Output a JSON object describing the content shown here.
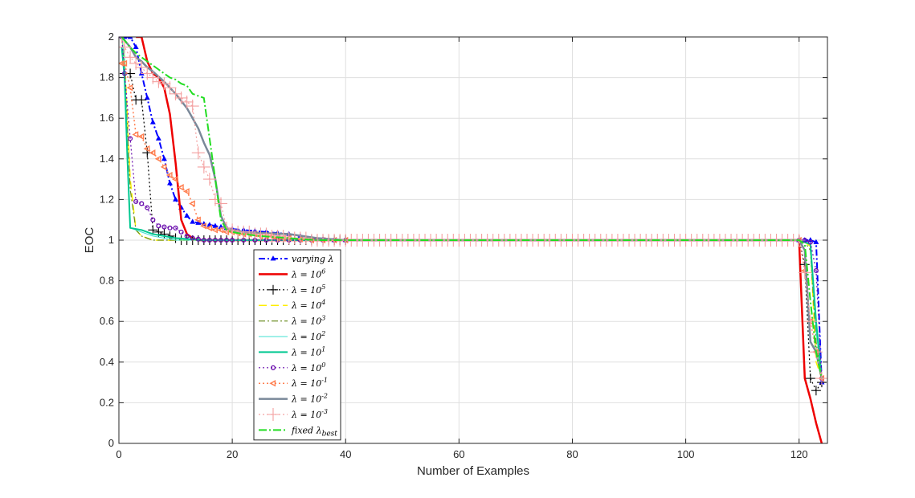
{
  "chart_data": {
    "type": "line",
    "title": "",
    "xlabel": "Number of Examples",
    "ylabel": "EOC",
    "xlim": [
      0,
      125
    ],
    "ylim": [
      0,
      2
    ],
    "xticks": [
      "0",
      "20",
      "40",
      "60",
      "80",
      "100",
      "120"
    ],
    "yticks": [
      "0",
      "0.2",
      "0.4",
      "0.6",
      "0.8",
      "1",
      "1.2",
      "1.4",
      "1.6",
      "1.8",
      "2"
    ],
    "grid": true,
    "legend_position": "inside-lower-left",
    "series": [
      {
        "name": "varying λ",
        "label_base": "varying ",
        "label_lambda": "λ",
        "label_sup": "",
        "label_sub": "",
        "color": "#0000ff",
        "dash": "8,3,2,3",
        "width": 2,
        "marker": "triangle",
        "marker_every": 1,
        "x": [
          1,
          2,
          3,
          4,
          5,
          6,
          7,
          8,
          9,
          10,
          11,
          12,
          13,
          14,
          15,
          16,
          17,
          18,
          19,
          20,
          22,
          24,
          26,
          28,
          30,
          32,
          34,
          36,
          38,
          40,
          120,
          121,
          122,
          123,
          124
        ],
        "y": [
          2.0,
          2.0,
          1.95,
          1.82,
          1.7,
          1.58,
          1.5,
          1.4,
          1.28,
          1.2,
          1.16,
          1.12,
          1.09,
          1.085,
          1.08,
          1.075,
          1.07,
          1.065,
          1.06,
          1.055,
          1.05,
          1.045,
          1.04,
          1.035,
          1.03,
          1.02,
          1.01,
          1.005,
          1.0,
          1.0,
          1.0,
          1.0,
          1.0,
          0.99,
          0.3
        ]
      },
      {
        "name": "λ = 10^6",
        "label_base": "",
        "label_lambda": "λ",
        "label_sup": "6",
        "label_sub": "",
        "color": "#ee0000",
        "dash": "",
        "width": 2.5,
        "marker": "none",
        "marker_every": 0,
        "x": [
          3,
          4,
          5,
          6,
          7,
          8,
          9,
          10,
          11,
          12,
          13,
          14,
          15,
          16,
          18,
          20,
          30,
          40,
          120,
          121,
          122,
          123,
          124
        ],
        "y": [
          2.0,
          2.0,
          1.88,
          1.82,
          1.8,
          1.75,
          1.62,
          1.38,
          1.1,
          1.03,
          1.01,
          1.0,
          1.0,
          1.0,
          1.0,
          1.0,
          1.0,
          1.0,
          1.0,
          0.32,
          0.22,
          0.1,
          0.0
        ]
      },
      {
        "name": "λ = 10^5",
        "label_base": "",
        "label_lambda": "λ",
        "label_sup": "5",
        "label_sub": "",
        "color": "#000000",
        "dash": "2,3",
        "width": 1.2,
        "marker": "plus",
        "marker_every": 1,
        "x": [
          1,
          2,
          3,
          4,
          5,
          6,
          7,
          8,
          9,
          10,
          11,
          12,
          13,
          14,
          15,
          16,
          17,
          18,
          19,
          20,
          21,
          22,
          23,
          24,
          25,
          26,
          27,
          28,
          29,
          30,
          31,
          32,
          33,
          34,
          35,
          36,
          37,
          38,
          39,
          40,
          120,
          121,
          122,
          123,
          124
        ],
        "y": [
          1.82,
          1.82,
          1.69,
          1.69,
          1.43,
          1.05,
          1.04,
          1.03,
          1.02,
          1.01,
          1.0,
          1.0,
          1.0,
          1.0,
          1.0,
          1.0,
          1.0,
          1.0,
          1.0,
          1.0,
          1.0,
          1.0,
          1.0,
          1.0,
          1.0,
          1.0,
          1.0,
          1.0,
          1.0,
          1.0,
          1.0,
          1.0,
          1.0,
          1.0,
          1.0,
          1.0,
          1.0,
          1.0,
          1.0,
          1.0,
          1.0,
          0.88,
          0.32,
          0.26,
          0.3
        ]
      },
      {
        "name": "λ = 10^4",
        "label_base": "",
        "label_lambda": "λ",
        "label_sup": "4",
        "label_sub": "",
        "color": "#ffee00",
        "dash": "10,5",
        "width": 1.5,
        "marker": "none",
        "marker_every": 0,
        "x": [
          0.5,
          1,
          2,
          3,
          4,
          5,
          6,
          8,
          10,
          15,
          20,
          40,
          120,
          121,
          122,
          123,
          124
        ],
        "y": [
          2.0,
          1.9,
          1.3,
          1.05,
          1.02,
          1.01,
          1.0,
          1.0,
          1.0,
          1.0,
          1.0,
          1.0,
          1.0,
          0.99,
          0.97,
          0.4,
          0.32
        ]
      },
      {
        "name": "λ = 10^3",
        "label_base": "",
        "label_lambda": "λ",
        "label_sup": "3",
        "label_sub": "",
        "color": "#6b8e23",
        "dash": "8,3,2,3",
        "width": 1.2,
        "marker": "none",
        "marker_every": 0,
        "x": [
          0.5,
          1,
          2,
          3,
          4,
          5,
          6,
          8,
          10,
          15,
          20,
          40,
          120,
          121,
          122,
          123,
          124
        ],
        "y": [
          2.0,
          1.85,
          1.25,
          1.05,
          1.02,
          1.01,
          1.0,
          1.0,
          1.0,
          1.0,
          1.0,
          1.0,
          1.0,
          0.99,
          0.95,
          0.5,
          0.32
        ]
      },
      {
        "name": "λ = 10^2",
        "label_base": "",
        "label_lambda": "λ",
        "label_sup": "2",
        "label_sub": "",
        "color": "#40e0d0",
        "dash": "",
        "width": 1,
        "marker": "none",
        "marker_every": 0,
        "x": [
          0.5,
          1,
          1.5,
          2,
          4,
          6,
          8,
          10,
          15,
          20,
          40,
          120,
          121,
          122,
          123,
          124
        ],
        "y": [
          2.0,
          1.9,
          1.4,
          1.06,
          1.04,
          1.02,
          1.01,
          1.0,
          1.0,
          1.0,
          1.0,
          1.0,
          0.99,
          0.98,
          0.55,
          0.32
        ]
      },
      {
        "name": "λ = 10^1",
        "label_base": "",
        "label_lambda": "λ",
        "label_sup": "1",
        "label_sub": "",
        "color": "#00c890",
        "dash": "",
        "width": 2,
        "marker": "none",
        "marker_every": 0,
        "x": [
          0.5,
          1,
          1.5,
          2,
          4,
          6,
          8,
          10,
          15,
          20,
          40,
          120,
          121,
          122,
          123,
          124
        ],
        "y": [
          1.95,
          1.8,
          1.4,
          1.06,
          1.05,
          1.03,
          1.02,
          1.01,
          1.0,
          1.0,
          1.0,
          1.0,
          0.99,
          0.98,
          0.6,
          0.32
        ]
      },
      {
        "name": "λ = 10^0",
        "label_base": "",
        "label_lambda": "λ",
        "label_sup": "0",
        "label_sub": "",
        "color": "#6a0dad",
        "dash": "2,3",
        "width": 1.2,
        "marker": "circle",
        "marker_every": 1,
        "x": [
          0.5,
          1,
          2,
          3,
          4,
          5,
          6,
          7,
          8,
          9,
          10,
          11,
          12,
          13,
          14,
          15,
          16,
          17,
          18,
          19,
          20,
          22,
          24,
          26,
          28,
          30,
          32,
          34,
          36,
          38,
          40,
          120,
          121,
          122,
          123,
          124
        ],
        "y": [
          2.0,
          1.82,
          1.5,
          1.19,
          1.18,
          1.16,
          1.1,
          1.07,
          1.065,
          1.06,
          1.06,
          1.04,
          1.02,
          1.01,
          1.005,
          1.0,
          1.0,
          1.0,
          1.0,
          1.0,
          1.0,
          1.0,
          1.0,
          1.0,
          1.0,
          1.0,
          1.0,
          1.0,
          1.0,
          1.0,
          1.0,
          1.0,
          1.0,
          0.99,
          0.85,
          0.32
        ]
      },
      {
        "name": "λ = 10^-1",
        "label_base": "",
        "label_lambda": "λ",
        "label_sup": "-1",
        "label_sub": "",
        "color": "#ff7f50",
        "dash": "2,3",
        "width": 1.5,
        "marker": "triangle-left",
        "marker_every": 1,
        "x": [
          0.5,
          1,
          2,
          3,
          4,
          5,
          6,
          7,
          8,
          9,
          10,
          11,
          12,
          13,
          14,
          15,
          16,
          17,
          18,
          19,
          20,
          21,
          22,
          23,
          24,
          25,
          26,
          27,
          28,
          29,
          30,
          32,
          34,
          36,
          38,
          40,
          120,
          121,
          122,
          123,
          124
        ],
        "y": [
          1.87,
          1.87,
          1.75,
          1.52,
          1.51,
          1.45,
          1.43,
          1.4,
          1.36,
          1.32,
          1.3,
          1.26,
          1.24,
          1.18,
          1.1,
          1.07,
          1.06,
          1.05,
          1.05,
          1.04,
          1.04,
          1.035,
          1.03,
          1.03,
          1.03,
          1.02,
          1.02,
          1.02,
          1.01,
          1.01,
          1.01,
          1.005,
          1.0,
          1.0,
          1.0,
          1.0,
          1.0,
          0.85,
          0.6,
          0.45,
          0.32
        ]
      },
      {
        "name": "λ = 10^-2",
        "label_base": "",
        "label_lambda": "λ",
        "label_sup": "-2",
        "label_sub": "",
        "color": "#7a8899",
        "dash": "",
        "width": 2.5,
        "marker": "none",
        "marker_every": 0,
        "x": [
          0.5,
          2,
          3,
          4,
          5,
          6,
          8,
          10,
          12,
          14,
          15,
          16,
          17,
          18,
          19,
          20,
          22,
          25,
          30,
          35,
          40,
          120,
          121,
          122,
          123,
          124
        ],
        "y": [
          2.0,
          1.95,
          1.9,
          1.88,
          1.85,
          1.83,
          1.78,
          1.72,
          1.65,
          1.55,
          1.48,
          1.42,
          1.3,
          1.12,
          1.06,
          1.05,
          1.04,
          1.035,
          1.03,
          1.01,
          1.0,
          1.0,
          0.95,
          0.5,
          0.45,
          0.32
        ]
      },
      {
        "name": "λ = 10^-3",
        "label_base": "",
        "label_lambda": "λ",
        "label_sup": "-3",
        "label_sub": "",
        "color": "#f4a0a0",
        "dash": "2,3",
        "width": 1.2,
        "marker": "plus-large",
        "marker_every": 1,
        "x": [
          0.5,
          1,
          2,
          3,
          4,
          5,
          6,
          7,
          8,
          9,
          10,
          11,
          12,
          13,
          14,
          15,
          16,
          17,
          18,
          19,
          20,
          21,
          22,
          23,
          24,
          25,
          26,
          27,
          28,
          29,
          30,
          31,
          32,
          33,
          34,
          35,
          36,
          37,
          38,
          39,
          40,
          41,
          42,
          43,
          44,
          45,
          46,
          47,
          48,
          49,
          50,
          51,
          52,
          53,
          54,
          55,
          56,
          57,
          58,
          59,
          60,
          61,
          62,
          63,
          64,
          65,
          66,
          67,
          68,
          69,
          70,
          71,
          72,
          73,
          74,
          75,
          76,
          77,
          78,
          79,
          80,
          81,
          82,
          83,
          84,
          85,
          86,
          87,
          88,
          89,
          90,
          91,
          92,
          93,
          94,
          95,
          96,
          97,
          98,
          99,
          100,
          101,
          102,
          103,
          104,
          105,
          106,
          107,
          108,
          109,
          110,
          111,
          112,
          113,
          114,
          115,
          116,
          117,
          118,
          119,
          120,
          121,
          122,
          123,
          124
        ],
        "y": [
          2.0,
          1.95,
          1.9,
          1.87,
          1.85,
          1.82,
          1.8,
          1.78,
          1.77,
          1.75,
          1.72,
          1.7,
          1.68,
          1.66,
          1.43,
          1.36,
          1.3,
          1.2,
          1.18,
          1.06,
          1.05,
          1.04,
          1.04,
          1.04,
          1.03,
          1.03,
          1.03,
          1.02,
          1.02,
          1.02,
          1.01,
          1.01,
          1.01,
          1.01,
          1.0,
          1.0,
          1.0,
          1.0,
          1.0,
          1.0,
          1.0,
          1.0,
          1.0,
          1.0,
          1.0,
          1.0,
          1.0,
          1.0,
          1.0,
          1.0,
          1.0,
          1.0,
          1.0,
          1.0,
          1.0,
          1.0,
          1.0,
          1.0,
          1.0,
          1.0,
          1.0,
          1.0,
          1.0,
          1.0,
          1.0,
          1.0,
          1.0,
          1.0,
          1.0,
          1.0,
          1.0,
          1.0,
          1.0,
          1.0,
          1.0,
          1.0,
          1.0,
          1.0,
          1.0,
          1.0,
          1.0,
          1.0,
          1.0,
          1.0,
          1.0,
          1.0,
          1.0,
          1.0,
          1.0,
          1.0,
          1.0,
          1.0,
          1.0,
          1.0,
          1.0,
          1.0,
          1.0,
          1.0,
          1.0,
          1.0,
          1.0,
          1.0,
          1.0,
          1.0,
          1.0,
          1.0,
          1.0,
          1.0,
          1.0,
          1.0,
          1.0,
          1.0,
          1.0,
          1.0,
          1.0,
          1.0,
          1.0,
          1.0,
          1.0,
          1.0,
          1.0,
          0.84,
          0.6,
          0.45,
          0.32
        ]
      },
      {
        "name": "fixed λ_best",
        "label_base": "fixed ",
        "label_lambda": "λ",
        "label_sup": "",
        "label_sub": "best",
        "color": "#22dd22",
        "dash": "10,3,2,3",
        "width": 2,
        "marker": "none",
        "marker_every": 0,
        "x": [
          0.5,
          2,
          3,
          4,
          5,
          6,
          7,
          8,
          9,
          10,
          11,
          12,
          13,
          14,
          15,
          16,
          17,
          18,
          19,
          20,
          22,
          25,
          30,
          35,
          40,
          120,
          121,
          122,
          123,
          124
        ],
        "y": [
          2.0,
          1.95,
          1.92,
          1.9,
          1.88,
          1.86,
          1.84,
          1.82,
          1.8,
          1.79,
          1.77,
          1.76,
          1.72,
          1.71,
          1.7,
          1.5,
          1.3,
          1.1,
          1.05,
          1.04,
          1.03,
          1.02,
          1.01,
          1.0,
          1.0,
          1.0,
          0.98,
          0.7,
          0.45,
          0.32
        ]
      }
    ]
  }
}
